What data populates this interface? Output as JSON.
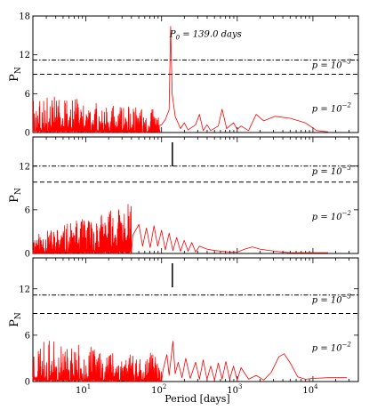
{
  "chart_data": [
    {
      "type": "line",
      "panel": "top",
      "ylabel": "P",
      "ylabel_sub": "N",
      "yticks": [
        0,
        6,
        12,
        18
      ],
      "ylim": [
        0,
        18
      ],
      "xlim_log10": [
        0.3,
        4.6
      ],
      "xticks": [
        {
          "exp": 1,
          "label": "10"
        },
        {
          "exp": 2,
          "label": "10"
        },
        {
          "exp": 3,
          "label": "10"
        },
        {
          "exp": 4,
          "label": "10"
        }
      ],
      "fap_lines": [
        {
          "level": "p = 10^-3",
          "value": 11.2,
          "style": "dashdot"
        },
        {
          "level": "p = 10^-2",
          "value": 9.0,
          "style": "dashed"
        }
      ],
      "annotation": "P_0 = 139.0 days",
      "peak": {
        "period": 139.0,
        "power": 16.4
      },
      "series": [
        {
          "noise": {
            "from_log10": 0.3,
            "to_log10": 1.98,
            "amp_start": 6.0,
            "amp_end": 3.5,
            "seed": 3
          },
          "points": [
            [
              1.95,
              1.0
            ],
            [
              2.0,
              1.2
            ],
            [
              2.05,
              2.0
            ],
            [
              2.1,
              3.5
            ],
            [
              2.12,
              16.4
            ],
            [
              2.14,
              6.0
            ],
            [
              2.18,
              2.5
            ],
            [
              2.25,
              0.6
            ],
            [
              2.3,
              1.5
            ],
            [
              2.35,
              0.4
            ],
            [
              2.45,
              1.2
            ],
            [
              2.5,
              2.8
            ],
            [
              2.55,
              0.3
            ],
            [
              2.6,
              1.2
            ],
            [
              2.65,
              0.3
            ],
            [
              2.75,
              1.0
            ],
            [
              2.8,
              3.6
            ],
            [
              2.86,
              0.6
            ],
            [
              2.95,
              1.5
            ],
            [
              3.0,
              0.5
            ],
            [
              3.05,
              1.0
            ],
            [
              3.15,
              0.3
            ],
            [
              3.25,
              2.8
            ],
            [
              3.35,
              1.8
            ],
            [
              3.5,
              2.5
            ],
            [
              3.7,
              2.2
            ],
            [
              3.9,
              1.5
            ],
            [
              4.05,
              0.3
            ],
            [
              4.2,
              0.1
            ]
          ]
        }
      ]
    },
    {
      "type": "line",
      "panel": "middle",
      "ylabel": "P",
      "ylabel_sub": "N",
      "yticks": [
        0,
        6,
        12
      ],
      "ylim": [
        0,
        16
      ],
      "xlim_log10": [
        0.3,
        4.6
      ],
      "xticks": [
        {
          "exp": 1,
          "label": "10"
        },
        {
          "exp": 2,
          "label": "10"
        },
        {
          "exp": 3,
          "label": "10"
        },
        {
          "exp": 4,
          "label": "10"
        }
      ],
      "fap_lines": [
        {
          "level": "p = 10^-3",
          "value": 12.0,
          "style": "dashdot"
        },
        {
          "level": "p = 10^-2",
          "value": 9.8,
          "style": "dashed"
        }
      ],
      "marker_period": 139.0,
      "series": [
        {
          "noise": {
            "from_log10": 0.3,
            "to_log10": 1.6,
            "amp_start": 2.5,
            "amp_end": 7.0,
            "seed": 11
          },
          "points": [
            [
              1.62,
              2.5
            ],
            [
              1.7,
              4.0
            ],
            [
              1.75,
              1.0
            ],
            [
              1.8,
              3.5
            ],
            [
              1.85,
              0.8
            ],
            [
              1.9,
              3.8
            ],
            [
              1.95,
              1.0
            ],
            [
              2.0,
              3.2
            ],
            [
              2.05,
              0.5
            ],
            [
              2.1,
              2.8
            ],
            [
              2.15,
              0.4
            ],
            [
              2.2,
              2.2
            ],
            [
              2.25,
              0.3
            ],
            [
              2.3,
              1.8
            ],
            [
              2.35,
              0.3
            ],
            [
              2.4,
              1.5
            ],
            [
              2.45,
              0.2
            ],
            [
              2.5,
              1.0
            ],
            [
              2.6,
              0.6
            ],
            [
              2.7,
              0.4
            ],
            [
              2.8,
              0.3
            ],
            [
              2.9,
              0.2
            ],
            [
              3.0,
              0.2
            ],
            [
              3.1,
              0.6
            ],
            [
              3.2,
              0.9
            ],
            [
              3.3,
              0.6
            ],
            [
              3.5,
              0.3
            ],
            [
              3.7,
              0.1
            ],
            [
              4.0,
              0.1
            ],
            [
              4.2,
              0.1
            ]
          ]
        }
      ]
    },
    {
      "type": "line",
      "panel": "bottom",
      "ylabel": "P",
      "ylabel_sub": "N",
      "yticks": [
        0,
        6,
        12
      ],
      "ylim": [
        0,
        16
      ],
      "xlim_log10": [
        0.3,
        4.6
      ],
      "xticks": [
        {
          "exp": 1,
          "label": "10"
        },
        {
          "exp": 2,
          "label": "10"
        },
        {
          "exp": 3,
          "label": "10"
        },
        {
          "exp": 4,
          "label": "10"
        }
      ],
      "fap_lines": [
        {
          "level": "p = 10^-3",
          "value": 11.2,
          "style": "dashdot"
        },
        {
          "level": "p = 10^-2",
          "value": 8.8,
          "style": "dashed"
        }
      ],
      "marker_period": 139.0,
      "series": [
        {
          "noise": {
            "from_log10": 0.3,
            "to_log10": 2.0,
            "amp_start": 5.5,
            "amp_end": 3.5,
            "seed": 23
          },
          "points": [
            [
              2.02,
              1.5
            ],
            [
              2.07,
              3.5
            ],
            [
              2.1,
              0.8
            ],
            [
              2.15,
              5.2
            ],
            [
              2.18,
              1.0
            ],
            [
              2.22,
              2.5
            ],
            [
              2.27,
              0.5
            ],
            [
              2.32,
              3.0
            ],
            [
              2.38,
              0.4
            ],
            [
              2.45,
              2.5
            ],
            [
              2.5,
              0.3
            ],
            [
              2.55,
              2.8
            ],
            [
              2.6,
              0.3
            ],
            [
              2.65,
              2.0
            ],
            [
              2.7,
              0.2
            ],
            [
              2.75,
              2.4
            ],
            [
              2.8,
              0.3
            ],
            [
              2.85,
              2.6
            ],
            [
              2.9,
              0.3
            ],
            [
              2.95,
              2.0
            ],
            [
              3.0,
              0.2
            ],
            [
              3.05,
              1.8
            ],
            [
              3.15,
              0.3
            ],
            [
              3.25,
              0.8
            ],
            [
              3.35,
              0.2
            ],
            [
              3.45,
              1.2
            ],
            [
              3.55,
              3.2
            ],
            [
              3.62,
              3.6
            ],
            [
              3.7,
              2.4
            ],
            [
              3.8,
              0.6
            ],
            [
              3.9,
              0.3
            ],
            [
              4.0,
              0.4
            ],
            [
              4.2,
              0.5
            ],
            [
              4.45,
              0.5
            ]
          ]
        }
      ]
    }
  ],
  "xlabel": "Period [days]",
  "fap_labels": {
    "upper": "p = 10",
    "upper_exp": "−3",
    "lower": "p = 10",
    "lower_exp": "−2"
  },
  "colors": {
    "series": "#ff0000",
    "axes": "#000000",
    "background": "#ffffff"
  }
}
